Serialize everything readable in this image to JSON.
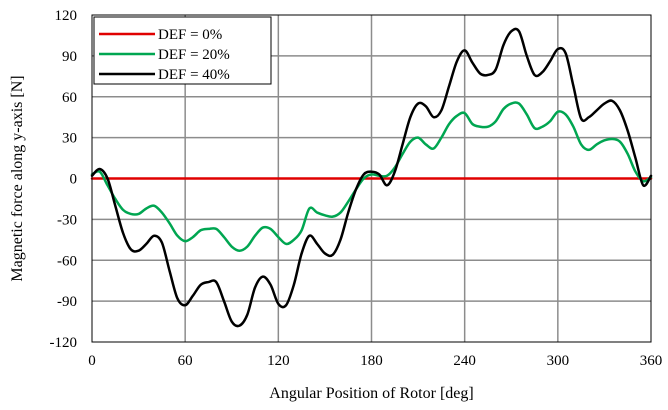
{
  "chart_data": {
    "type": "line",
    "xlabel": "Angular Position of Rotor [deg]",
    "ylabel": "Magnetic force along y-axis [N]",
    "xlim": [
      0,
      360
    ],
    "ylim": [
      -120,
      120
    ],
    "x_ticks": [
      0,
      60,
      120,
      180,
      240,
      300,
      360
    ],
    "y_ticks": [
      120,
      90,
      60,
      30,
      0,
      -30,
      -60,
      -90,
      -120
    ],
    "x_tick_labels": [
      "0",
      "60",
      "120",
      "180",
      "240",
      "300",
      "360"
    ],
    "y_tick_labels": [
      "120",
      "90",
      "60",
      "30",
      "0",
      "-30",
      "-60",
      "-90",
      "-120"
    ],
    "grid": true,
    "legend_position": "top-left",
    "series": [
      {
        "name": "DEF = 0%",
        "color": "#e00000",
        "x": [
          0,
          360
        ],
        "y": [
          0,
          0
        ]
      },
      {
        "name": "DEF = 20%",
        "color": "#00a651",
        "x": [
          0,
          5,
          10,
          15,
          20,
          25,
          30,
          35,
          40,
          45,
          50,
          55,
          60,
          65,
          70,
          75,
          80,
          85,
          90,
          95,
          100,
          105,
          110,
          115,
          120,
          125,
          130,
          135,
          140,
          145,
          150,
          155,
          160,
          165,
          170,
          175,
          180,
          185,
          190,
          195,
          200,
          205,
          210,
          215,
          220,
          225,
          230,
          235,
          240,
          245,
          250,
          255,
          260,
          265,
          270,
          275,
          280,
          285,
          290,
          295,
          300,
          305,
          310,
          315,
          320,
          325,
          330,
          335,
          340,
          345,
          350,
          355,
          360
        ],
        "y": [
          3,
          5,
          -5,
          -15,
          -23,
          -26,
          -26,
          -22,
          -20,
          -25,
          -33,
          -42,
          -46,
          -43,
          -38,
          -37,
          -37,
          -43,
          -50,
          -53,
          -50,
          -42,
          -36,
          -37,
          -43,
          -48,
          -45,
          -38,
          -22,
          -25,
          -27,
          -28,
          -25,
          -17,
          -8,
          0,
          3,
          2,
          2,
          8,
          18,
          27,
          30,
          25,
          22,
          30,
          40,
          46,
          48,
          40,
          38,
          38,
          42,
          51,
          55,
          55,
          47,
          37,
          38,
          42,
          49,
          47,
          38,
          25,
          21,
          25,
          28,
          29,
          27,
          18,
          5,
          -2,
          1
        ]
      },
      {
        "name": "DEF = 40%",
        "color": "#000000",
        "x": [
          0,
          5,
          10,
          15,
          20,
          25,
          30,
          35,
          40,
          45,
          50,
          55,
          60,
          65,
          70,
          75,
          80,
          85,
          90,
          95,
          100,
          105,
          110,
          115,
          120,
          125,
          130,
          135,
          140,
          145,
          150,
          155,
          160,
          165,
          170,
          175,
          180,
          185,
          190,
          195,
          200,
          205,
          210,
          215,
          220,
          225,
          230,
          235,
          240,
          245,
          250,
          255,
          260,
          265,
          270,
          275,
          280,
          285,
          290,
          295,
          300,
          305,
          310,
          315,
          320,
          325,
          330,
          335,
          340,
          345,
          350,
          355,
          360
        ],
        "y": [
          2,
          7,
          0,
          -20,
          -40,
          -52,
          -53,
          -48,
          -42,
          -47,
          -68,
          -88,
          -93,
          -86,
          -78,
          -76,
          -76,
          -90,
          -105,
          -108,
          -100,
          -80,
          -72,
          -78,
          -92,
          -93,
          -78,
          -55,
          -42,
          -48,
          -55,
          -56,
          -45,
          -25,
          -8,
          3,
          5,
          3,
          -5,
          5,
          25,
          45,
          55,
          53,
          45,
          50,
          68,
          86,
          94,
          85,
          77,
          76,
          80,
          98,
          108,
          108,
          90,
          76,
          78,
          86,
          95,
          92,
          68,
          44,
          45,
          50,
          55,
          57,
          50,
          35,
          15,
          -5,
          2
        ]
      }
    ]
  }
}
